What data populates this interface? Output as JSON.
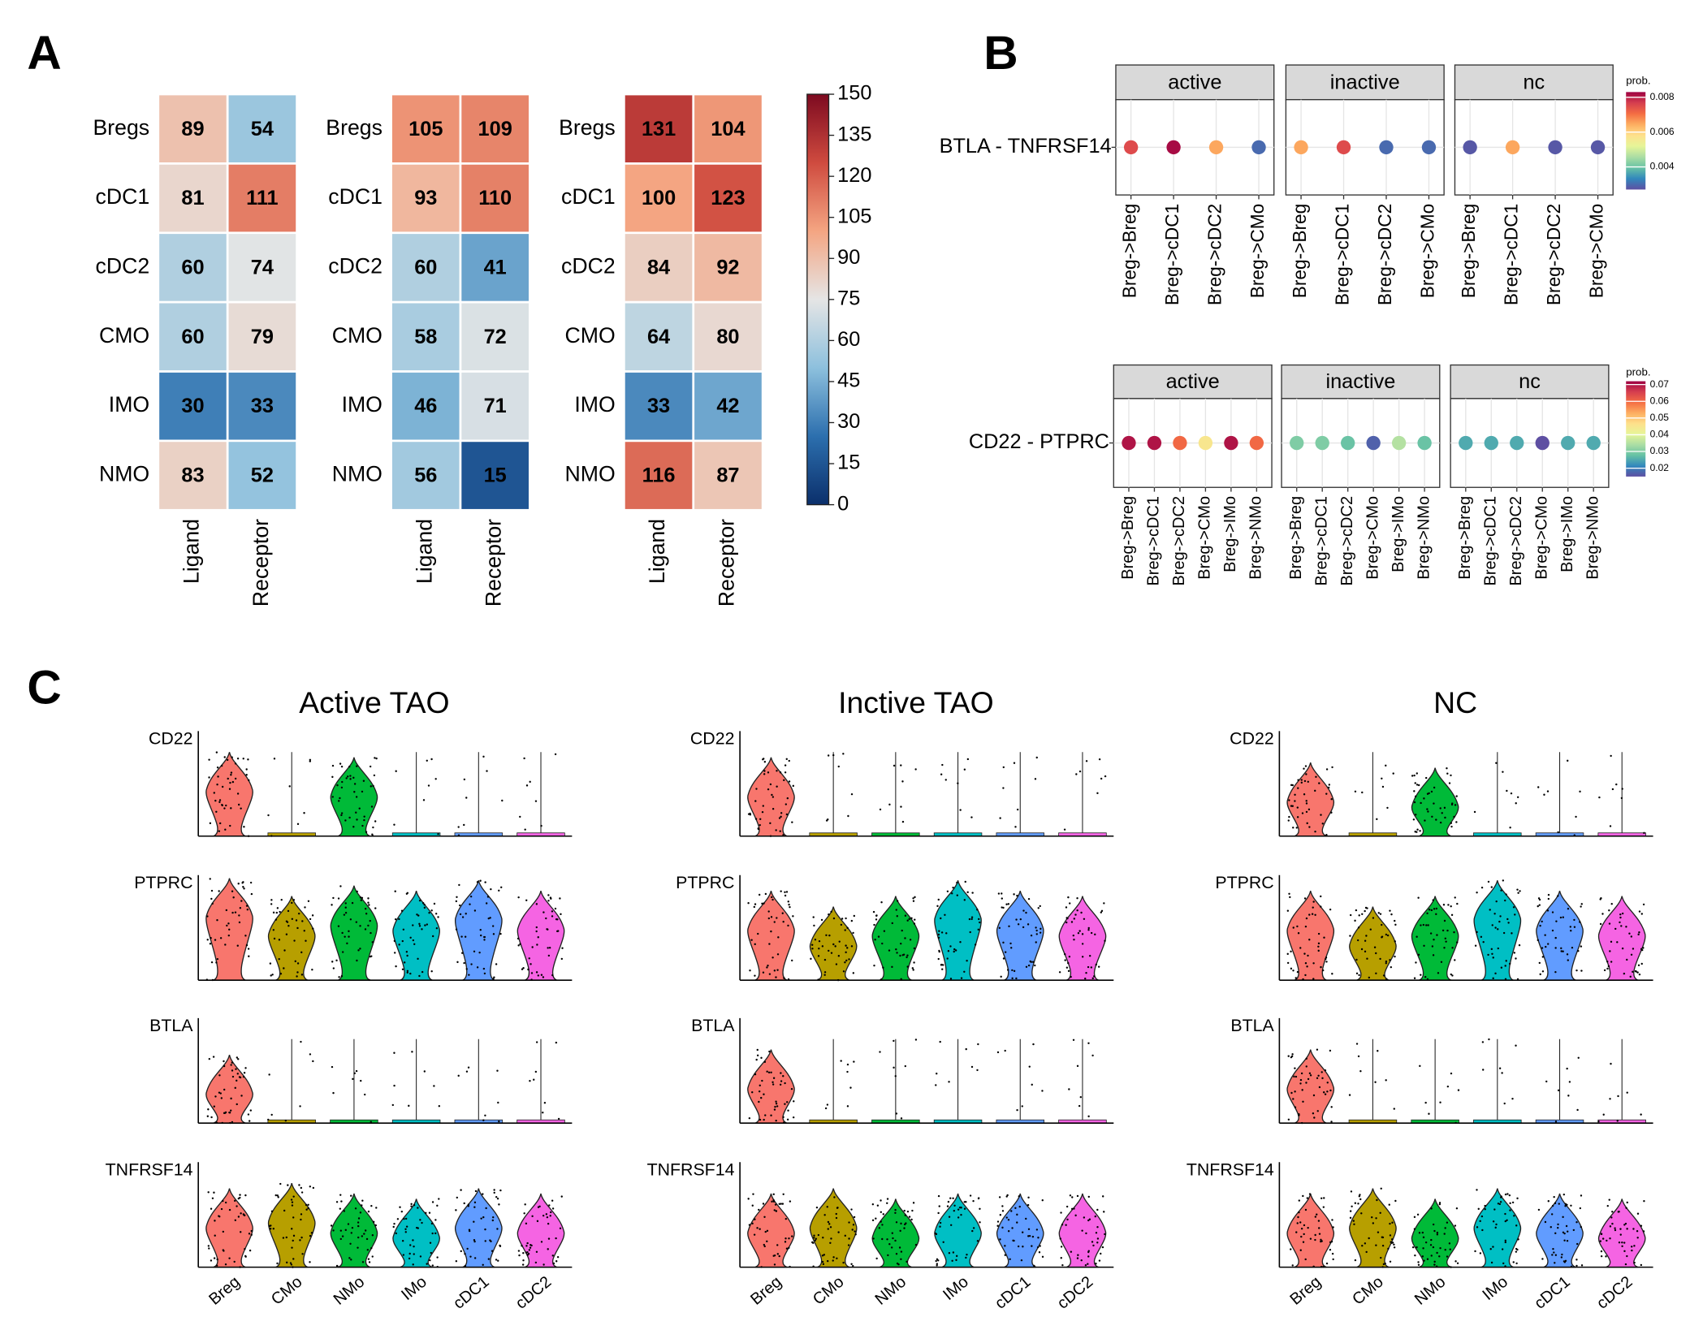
{
  "panel_labels": [
    "A",
    "B",
    "C"
  ],
  "chart_data": [
    {
      "type": "heatmap",
      "rows": [
        "Bregs",
        "cDC1",
        "cDC2",
        "CMO",
        "IMO",
        "NMO"
      ],
      "columns": [
        "Ligand",
        "Receptor"
      ],
      "matrices": [
        [
          [
            89,
            54
          ],
          [
            81,
            111
          ],
          [
            60,
            74
          ],
          [
            60,
            79
          ],
          [
            30,
            33
          ],
          [
            83,
            52
          ]
        ],
        [
          [
            105,
            109
          ],
          [
            93,
            110
          ],
          [
            60,
            41
          ],
          [
            58,
            72
          ],
          [
            46,
            71
          ],
          [
            56,
            15
          ]
        ],
        [
          [
            131,
            104
          ],
          [
            100,
            123
          ],
          [
            84,
            92
          ],
          [
            64,
            80
          ],
          [
            33,
            42
          ],
          [
            116,
            87
          ]
        ]
      ],
      "clim": [
        0,
        150
      ],
      "cticks": [
        0,
        15,
        30,
        45,
        60,
        75,
        90,
        105,
        120,
        135,
        150
      ],
      "colormap": [
        "#0b2f6b",
        "#2c6fae",
        "#8dc0dd",
        "#e5e5e5",
        "#f4a582",
        "#cf4b3f",
        "#7d0a20"
      ]
    },
    {
      "type": "dot",
      "y_label": "BTLA - TNFRSF14",
      "facets": [
        "active",
        "inactive",
        "nc"
      ],
      "categories": [
        "Breg->Breg",
        "Breg->cDC1",
        "Breg->cDC2",
        "Breg->CMo"
      ],
      "values": [
        [
          0.0075,
          0.0082,
          0.0065,
          0.003
        ],
        [
          0.0065,
          0.0075,
          0.003,
          0.003
        ],
        [
          0.0028,
          0.0065,
          0.0028,
          0.0028
        ]
      ],
      "legend_title": "prob.",
      "clim": [
        0.0027,
        0.0083
      ],
      "cticks": [
        0.004,
        0.006,
        0.008
      ],
      "colormap": [
        "#5e4fa2",
        "#3288bd",
        "#66c2a5",
        "#abdda4",
        "#e6f598",
        "#fee08b",
        "#fdae61",
        "#f46d43",
        "#d53e4f",
        "#9e0142"
      ]
    },
    {
      "type": "dot",
      "y_label": "CD22 - PTPRC",
      "facets": [
        "active",
        "inactive",
        "nc"
      ],
      "categories": [
        "Breg->Breg",
        "Breg->cDC1",
        "Breg->cDC2",
        "Breg->CMo",
        "Breg->IMo",
        "Breg->NMo"
      ],
      "values": [
        [
          0.07,
          0.07,
          0.06,
          0.045,
          0.07,
          0.06
        ],
        [
          0.03,
          0.03,
          0.028,
          0.017,
          0.035,
          0.028
        ],
        [
          0.025,
          0.025,
          0.025,
          0.015,
          0.025,
          0.025
        ]
      ],
      "legend_title": "prob.",
      "clim": [
        0.015,
        0.072
      ],
      "cticks": [
        0.02,
        0.03,
        0.04,
        0.05,
        0.06,
        0.07
      ],
      "colormap": [
        "#5e4fa2",
        "#3288bd",
        "#66c2a5",
        "#abdda4",
        "#e6f598",
        "#fee08b",
        "#fdae61",
        "#f46d43",
        "#d53e4f",
        "#9e0142"
      ]
    },
    {
      "type": "violin",
      "titles": [
        "Active TAO",
        "Inctive TAO",
        "NC"
      ],
      "genes": [
        "CD22",
        "PTPRC",
        "BTLA",
        "TNFRSF14"
      ],
      "categories": [
        "Breg",
        "CMo",
        "NMo",
        "IMo",
        "cDC1",
        "cDC2"
      ],
      "colors": [
        "#f8766d",
        "#b79f00",
        "#00ba38",
        "#00bfc4",
        "#619cff",
        "#f564e3"
      ],
      "ylim": [
        0,
        1
      ],
      "values": [
        [
          [
            0.45,
            0,
            0.4,
            0,
            0,
            0
          ],
          [
            0.62,
            0.45,
            0.55,
            0.5,
            0.6,
            0.5
          ],
          [
            0.3,
            0,
            0,
            0,
            0,
            0
          ],
          [
            0.4,
            0.45,
            0.35,
            0.3,
            0.4,
            0.35
          ]
        ],
        [
          [
            0.4,
            0,
            0,
            0,
            0,
            0
          ],
          [
            0.5,
            0.35,
            0.45,
            0.6,
            0.5,
            0.45
          ],
          [
            0.35,
            0,
            0,
            0,
            0,
            0
          ],
          [
            0.35,
            0.4,
            0.3,
            0.35,
            0.35,
            0.35
          ]
        ],
        [
          [
            0.35,
            0,
            0.3,
            0,
            0,
            0
          ],
          [
            0.5,
            0.35,
            0.45,
            0.6,
            0.5,
            0.45
          ],
          [
            0.35,
            0,
            0,
            0,
            0,
            0
          ],
          [
            0.35,
            0.4,
            0.3,
            0.4,
            0.35,
            0.3
          ]
        ]
      ]
    }
  ]
}
